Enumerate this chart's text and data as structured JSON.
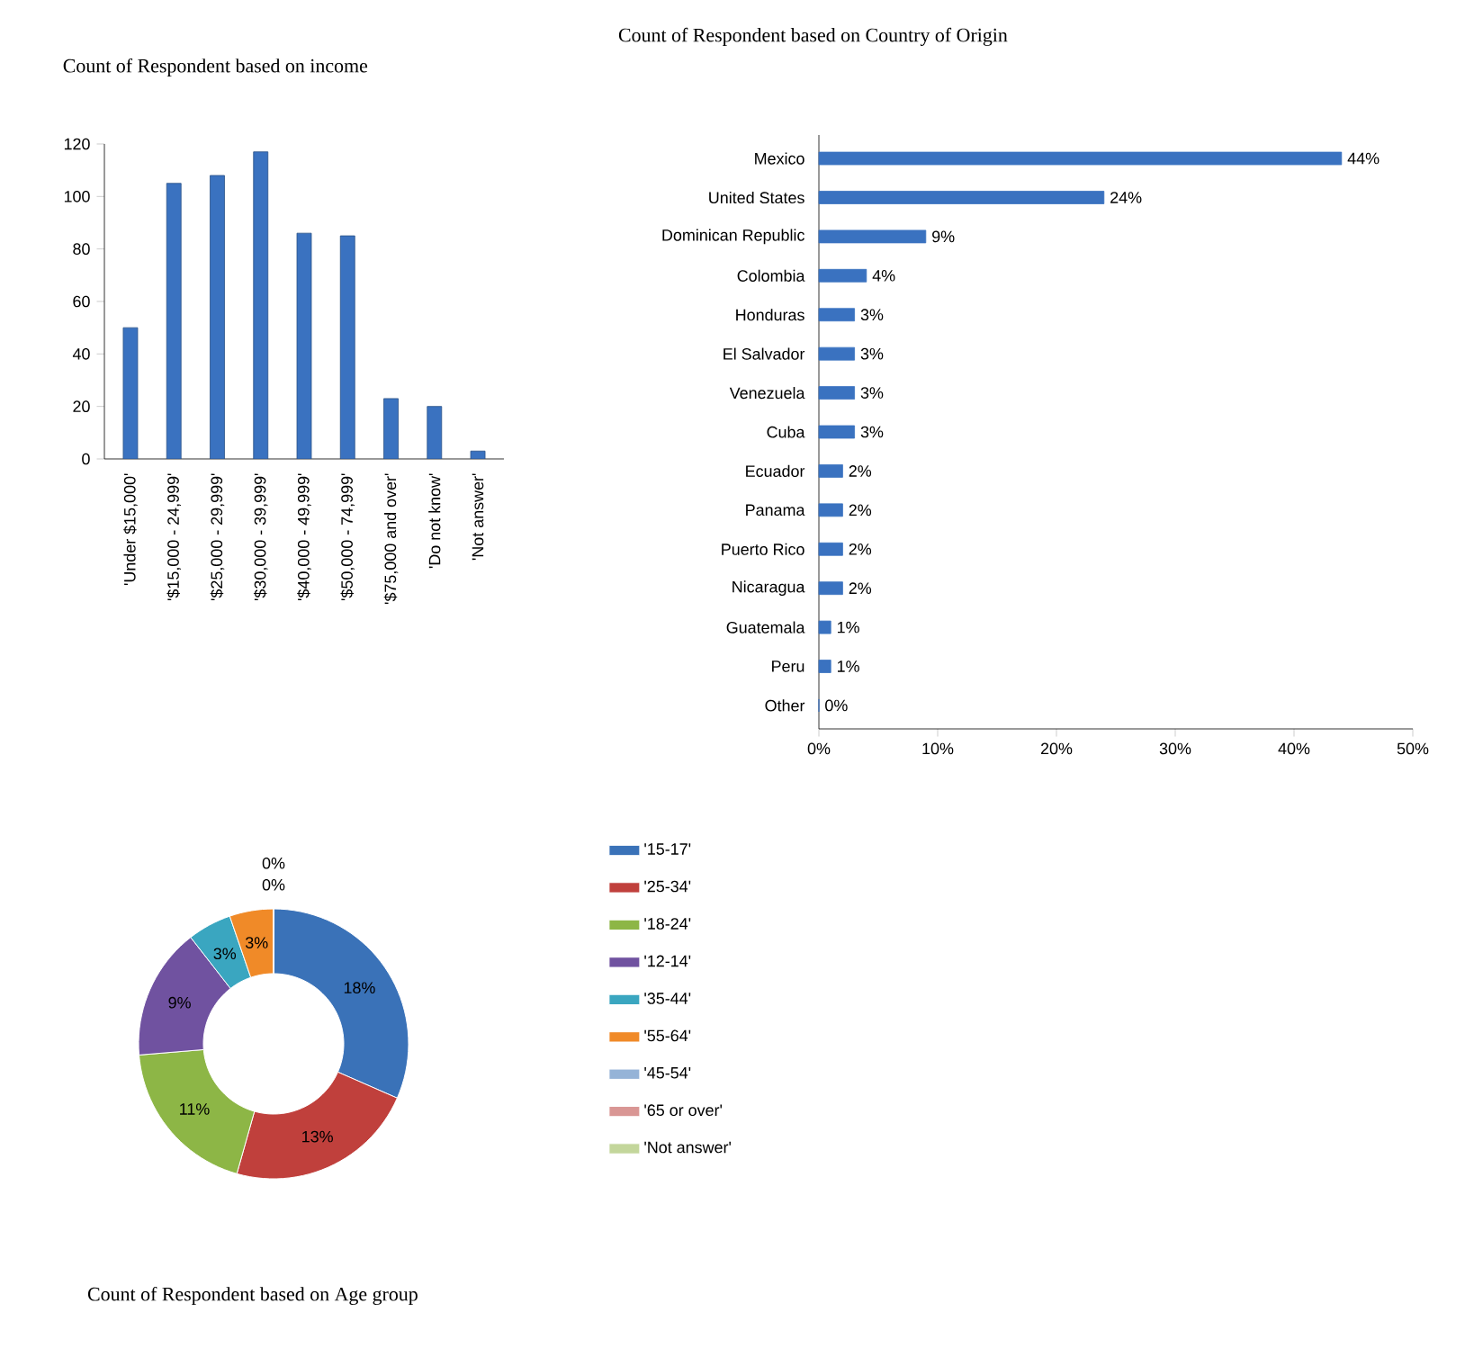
{
  "chart_data": [
    {
      "type": "bar",
      "title": "Count of Respondent based on income",
      "categories": [
        "'Under $15,000'",
        "'$15,000 - 24,999'",
        "'$25,000 - 29,999'",
        "'$30,000 - 39,999'",
        "'$40,000 - 49,999'",
        "'$50,000 - 74,999'",
        "'$75,000 and over'",
        "'Do not know'",
        "'Not answer'"
      ],
      "values": [
        50,
        105,
        108,
        117,
        86,
        85,
        23,
        20,
        3
      ],
      "color": "#3a72c0",
      "ylim": [
        0,
        120
      ],
      "yticks": [
        0,
        20,
        40,
        60,
        80,
        100,
        120
      ]
    },
    {
      "type": "bar",
      "orientation": "horizontal",
      "title": "Count of Respondent based on Country of Origin",
      "categories": [
        "Mexico",
        "United States",
        "Dominican Republic",
        "Colombia",
        "Honduras",
        "El Salvador",
        "Venezuela",
        "Cuba",
        "Ecuador",
        "Panama",
        "Puerto Rico",
        "Nicaragua",
        "Guatemala",
        "Peru",
        "Other"
      ],
      "values": [
        44,
        24,
        9,
        4,
        3,
        3,
        3,
        3,
        2,
        2,
        2,
        2,
        1,
        1,
        0
      ],
      "color": "#3a72c0",
      "value_labels": [
        "44%",
        "24%",
        "9%",
        "4%",
        "3%",
        "3%",
        "3%",
        "3%",
        "2%",
        "2%",
        "2%",
        "2%",
        "1%",
        "1%",
        "0%"
      ],
      "xlim": [
        0,
        50
      ],
      "xticks": [
        {
          "value": 0,
          "label": "0%"
        },
        {
          "value": 10,
          "label": "10%"
        },
        {
          "value": 20,
          "label": "20%"
        },
        {
          "value": 30,
          "label": "30%"
        },
        {
          "value": 40,
          "label": "40%"
        },
        {
          "value": 50,
          "label": "50%"
        }
      ]
    },
    {
      "type": "donut",
      "title": "Count of Respondent based on Age group",
      "categories": [
        "'15-17'",
        "'25-34'",
        "'18-24'",
        "'12-14'",
        "'35-44'",
        "'55-64'",
        "'45-54'",
        "'65 or over'",
        "'Not answer'"
      ],
      "values": [
        18,
        13,
        11,
        9,
        3,
        3,
        0,
        0,
        0
      ],
      "value_labels": [
        "18%",
        "13%",
        "11%",
        "9%",
        "3%",
        "3%",
        "0%",
        "0%",
        null
      ],
      "colors": [
        "#3a72b8",
        "#c0403c",
        "#8db646",
        "#7052a0",
        "#3aa6c0",
        "#f08a28",
        "#95b3d7",
        "#d99694",
        "#c3d69b"
      ],
      "legend": "right"
    }
  ]
}
